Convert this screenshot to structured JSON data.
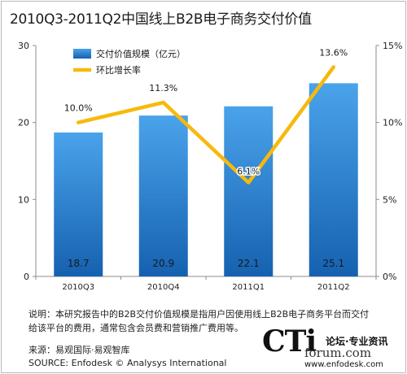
{
  "title": "2010Q3-2011Q2中国线上B2B电子商务交付价值",
  "colors": {
    "bar_top": "#4aa3ea",
    "bar_bottom": "#1561b0",
    "line": "#f7b90c",
    "axis": "#8c8c8c"
  },
  "chart_data": {
    "type": "bar",
    "categories": [
      "2010Q3",
      "2010Q4",
      "2011Q1",
      "2011Q2"
    ],
    "series": [
      {
        "name": "交付价值规模（亿元）",
        "type": "bar",
        "axis": "left",
        "values": [
          18.7,
          20.9,
          22.1,
          25.1
        ]
      },
      {
        "name": "环比增长率",
        "type": "line",
        "axis": "right",
        "values": [
          10.0,
          11.3,
          6.1,
          13.6
        ]
      }
    ],
    "bar_labels": [
      "18.7",
      "20.9",
      "22.1",
      "25.1"
    ],
    "line_labels": [
      "10.0%",
      "11.3%",
      "6.1%",
      "13.6%"
    ],
    "y_left": {
      "ticks": [
        "0",
        "10",
        "20",
        "30"
      ],
      "range": [
        0,
        30
      ]
    },
    "y_right": {
      "ticks": [
        "0%",
        "5%",
        "10%",
        "15%"
      ],
      "range": [
        0,
        15
      ]
    },
    "legend_position": "top-left",
    "grid": false
  },
  "note": "说明：本研究报告中的B2B交付价值规模是指用户因使用线上B2B电子商务平台而交付给该平台的费用，通常包含会员费和营销推广费用等。",
  "source_cn": "来源：易观国际·易观智库",
  "source_en": "SOURCE: Enfodesk © Analysys International",
  "watermark": {
    "logo": "CTi",
    "slogan": "论坛·专业资讯",
    "domain": "forum.com",
    "url": "www.enfodesk.com"
  }
}
